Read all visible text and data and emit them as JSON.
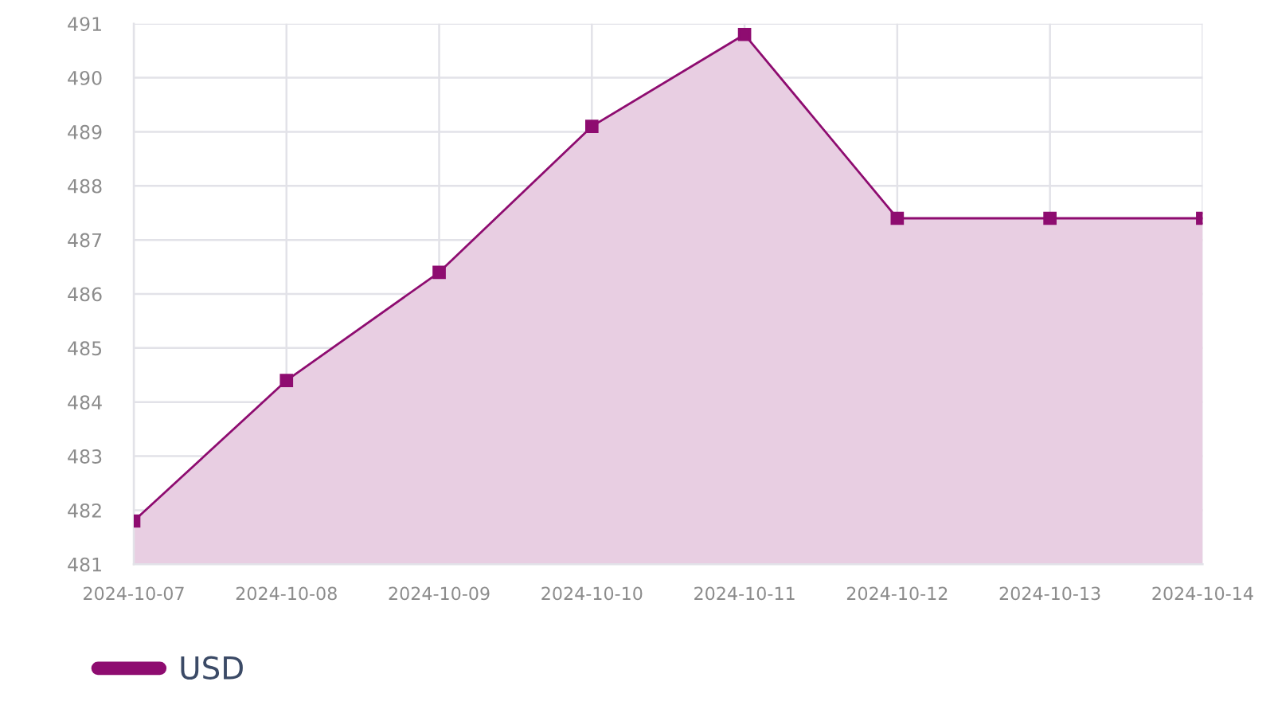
{
  "chart_data": {
    "type": "area",
    "categories": [
      "2024-10-07",
      "2024-10-08",
      "2024-10-09",
      "2024-10-10",
      "2024-10-11",
      "2024-10-12",
      "2024-10-13",
      "2024-10-14"
    ],
    "series": [
      {
        "name": "USD",
        "color": "#8e0c70",
        "values": [
          481.8,
          484.4,
          486.4,
          489.1,
          490.8,
          487.4,
          487.4,
          487.4
        ]
      }
    ],
    "ylim": [
      481,
      491
    ],
    "yticks": [
      481,
      482,
      483,
      484,
      485,
      486,
      487,
      488,
      489,
      490,
      491
    ],
    "grid": true,
    "legend": "bottom left",
    "marker": "square"
  }
}
